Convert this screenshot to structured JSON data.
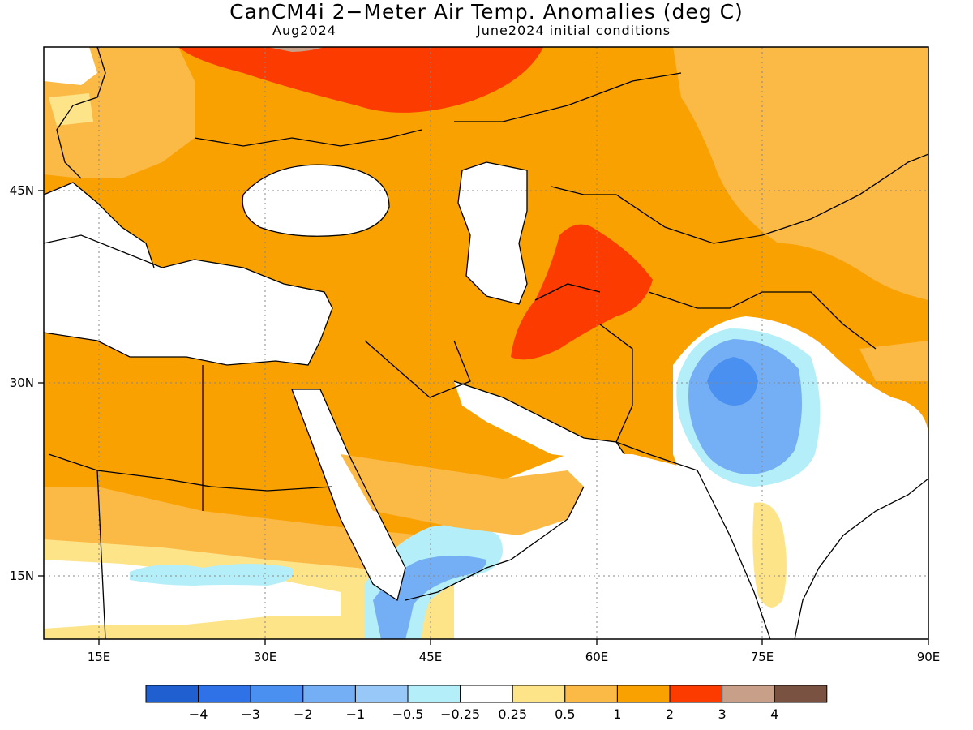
{
  "title": "CanCM4i 2−Meter Air Temp. Anomalies (deg C)",
  "subtitle_left": "Aug2024",
  "subtitle_right": "June2024 initial conditions",
  "lon_ticks": [
    "15E",
    "30E",
    "45E",
    "60E",
    "75E",
    "90E"
  ],
  "lat_ticks": [
    "45N",
    "30N",
    "15N"
  ],
  "colorbar": {
    "colors": [
      "#1f5fd0",
      "#2f72e8",
      "#4a90f0",
      "#74aef4",
      "#98c8f8",
      "#b4eef8",
      "#ffffff",
      "#fde488",
      "#fbb946",
      "#f9a100",
      "#fb3b00",
      "#c8a08a",
      "#7a5242"
    ],
    "labels": [
      "−4",
      "−3",
      "−2",
      "−1",
      "−0.5",
      "−0.25",
      "0.25",
      "0.5",
      "1",
      "2",
      "3",
      "4"
    ]
  },
  "field_colors": {
    "strong_warm": "#fb3b00",
    "warm": "#f9a100",
    "mild_warm": "#fbb946",
    "slight_warm": "#fde488",
    "slight_cool": "#b4eef8",
    "cool": "#98c8f8",
    "cooler": "#74aef4",
    "coolest": "#4a90f0"
  }
}
